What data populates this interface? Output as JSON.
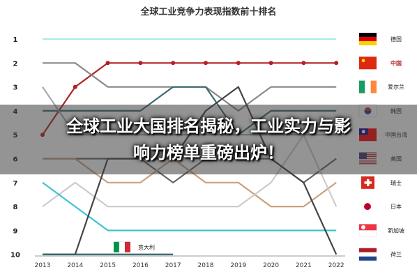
{
  "chart_data": {
    "type": "line",
    "title": "全球工业竞争力表现指数前十排名",
    "x": [
      "2013",
      "2014",
      "2015",
      "2016",
      "2017",
      "2018",
      "2019",
      "2020",
      "2021",
      "2022"
    ],
    "y_ticks": [
      "1",
      "2",
      "3",
      "4",
      "5",
      "6",
      "7",
      "8",
      "9",
      "10"
    ],
    "ylim": [
      1,
      10
    ],
    "y_inverted": true,
    "grid": false,
    "legend_position": "right",
    "series": [
      {
        "name": "德国",
        "color": "#aee8ee",
        "values": [
          1,
          1,
          1,
          1,
          1,
          1,
          1,
          1,
          1,
          1
        ]
      },
      {
        "name": "中国",
        "color": "#b22222",
        "values": [
          5,
          3,
          2,
          2,
          2,
          2,
          2,
          2,
          2,
          2
        ]
      },
      {
        "name": "爱尔兰",
        "color": "#888888",
        "values": [
          2,
          2,
          3,
          3,
          3,
          3,
          4,
          3,
          3,
          3
        ]
      },
      {
        "name": "韩国",
        "color": "#3a6b70",
        "values": [
          4,
          4,
          4,
          4,
          3,
          3,
          5,
          4,
          4,
          4
        ]
      },
      {
        "name": "中国台湾",
        "color": "#aaaaaa",
        "values": [
          3,
          5,
          5,
          5,
          5,
          5,
          5,
          5,
          5,
          5
        ]
      },
      {
        "name": "美国",
        "color": "#666666",
        "values": [
          6,
          6,
          6,
          6,
          7,
          6,
          6,
          6,
          7,
          6
        ]
      },
      {
        "name": "瑞士",
        "color": "#c9a07d",
        "values": [
          6,
          6,
          7,
          7,
          6,
          7,
          7,
          8,
          8,
          7
        ]
      },
      {
        "name": "日本",
        "color": "#cccccc",
        "values": [
          8,
          7,
          8,
          8,
          8,
          8,
          8,
          7,
          5,
          8
        ]
      },
      {
        "name": "新加坡",
        "color": "#3cc4d0",
        "values": [
          7,
          8,
          9,
          9,
          9,
          9,
          9,
          9,
          9,
          9
        ]
      },
      {
        "name": "荷兰",
        "color": "#444444",
        "values": [
          10,
          10,
          6,
          6,
          6,
          4,
          3,
          6,
          7,
          10
        ]
      },
      {
        "name": "意大利",
        "color": "#2f5f64",
        "values": [
          10,
          10,
          10,
          10,
          10,
          null,
          null,
          null,
          null,
          null
        ]
      }
    ],
    "legend_flags": {
      "德国": [
        "#000000",
        "#dd0000",
        "#ffce00"
      ],
      "中国": [
        "#de2910"
      ],
      "爱尔兰": [
        "#169b62",
        "#ffffff",
        "#ff883e"
      ],
      "韩国": [
        "#ffffff"
      ],
      "中国台湾": [
        "#fe0000"
      ],
      "美国": [
        "#b22234"
      ],
      "瑞士": [
        "#d52b1e"
      ],
      "日本": [
        "#ffffff"
      ],
      "新加坡": [
        "#ef3340"
      ],
      "荷兰": [
        "#ae1c28",
        "#ffffff",
        "#21468b"
      ],
      "意大利": [
        "#009246",
        "#ffffff",
        "#ce2b37"
      ]
    }
  },
  "banner": {
    "line1": "全球工业大国排名揭秘，工业实力与影",
    "line2": "响力榜单重磅出炉！"
  }
}
